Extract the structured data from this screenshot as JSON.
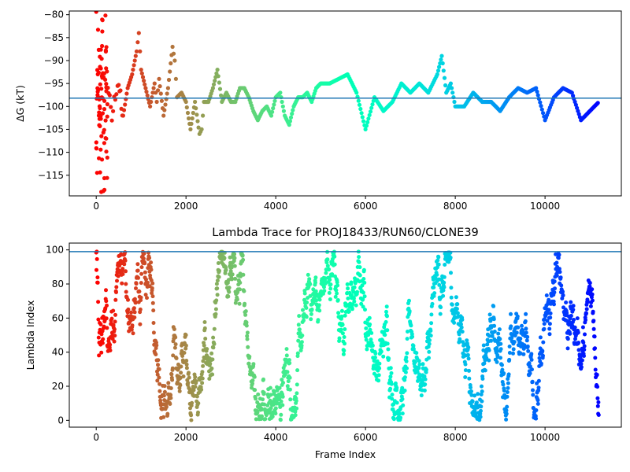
{
  "chart_data": [
    {
      "type": "scatter",
      "title": "",
      "xlabel": "",
      "ylabel": "ΔG (kT)",
      "xlim": [
        -600,
        11700
      ],
      "ylim": [
        -119.5,
        -79.2
      ],
      "xticks": [
        0,
        2000,
        4000,
        6000,
        8000,
        10000
      ],
      "yticks": [
        -115,
        -110,
        -105,
        -100,
        -95,
        -90,
        -85,
        -80
      ],
      "hline": -98.2,
      "hline_color": "#1f77b4",
      "colormap": "rainbow (red at frame 0 → violet at last frame)",
      "grid": false,
      "anchors_x": [
        0,
        20,
        40,
        60,
        80,
        100,
        130,
        160,
        200,
        250,
        300,
        350,
        400,
        450,
        500,
        600,
        700,
        800,
        900,
        950,
        1000,
        1100,
        1200,
        1300,
        1350,
        1400,
        1500,
        1600,
        1700,
        1750,
        1800,
        1900,
        2000,
        2100,
        2200,
        2300,
        2350,
        2400,
        2500,
        2600,
        2700,
        2800,
        2900,
        3000,
        3100,
        3200,
        3300,
        3400,
        3500,
        3600,
        3700,
        3800,
        3900,
        4000,
        4100,
        4200,
        4300,
        4400,
        4500,
        4600,
        4700,
        4800,
        4900,
        5000,
        5200,
        5400,
        5600,
        5800,
        6000,
        6200,
        6400,
        6600,
        6800,
        7000,
        7200,
        7400,
        7600,
        7700,
        7800,
        7900,
        8000,
        8200,
        8400,
        8600,
        8800,
        9000,
        9200,
        9400,
        9600,
        9800,
        10000,
        10200,
        10400,
        10600,
        10800,
        11000,
        11200
      ],
      "anchors_y": [
        -80,
        -115,
        -84,
        -110,
        -90,
        -103,
        -88,
        -106,
        -93,
        -101,
        -96,
        -104,
        -97,
        -99,
        -95,
        -102,
        -96,
        -93,
        -88,
        -84,
        -92,
        -96,
        -100,
        -95,
        -99,
        -94,
        -102,
        -96,
        -87,
        -90,
        -98,
        -97,
        -99,
        -105,
        -99,
        -106,
        -105,
        -99,
        -99,
        -96,
        -92,
        -99,
        -97,
        -99,
        -99,
        -96,
        -96,
        -98,
        -101,
        -103,
        -101,
        -100,
        -102,
        -98,
        -97,
        -102,
        -104,
        -100,
        -98,
        -98,
        -97,
        -99,
        -96,
        -95,
        -95,
        -94,
        -93,
        -97,
        -105,
        -98,
        -101,
        -99,
        -95,
        -97,
        -95,
        -97,
        -93,
        -89,
        -97,
        -95,
        -100,
        -100,
        -97,
        -99,
        -99,
        -101,
        -98,
        -96,
        -97,
        -96,
        -103,
        -98,
        -96,
        -97,
        -103,
        -101,
        -99
      ]
    },
    {
      "type": "scatter",
      "title": "Lambda Trace for PROJ18433/RUN60/CLONE39",
      "xlabel": "Frame Index",
      "ylabel": "Lambda Index",
      "xlim": [
        -600,
        11700
      ],
      "ylim": [
        -4,
        104
      ],
      "xticks": [
        0,
        2000,
        4000,
        6000,
        8000,
        10000
      ],
      "yticks": [
        0,
        20,
        40,
        60,
        80,
        100
      ],
      "hline": 99,
      "hline_color": "#1f77b4",
      "colormap": "rainbow (red at frame 0 → violet at last frame)",
      "grid": false,
      "lambda_min": 0,
      "lambda_max": 99,
      "n_frames": 11200
    }
  ]
}
